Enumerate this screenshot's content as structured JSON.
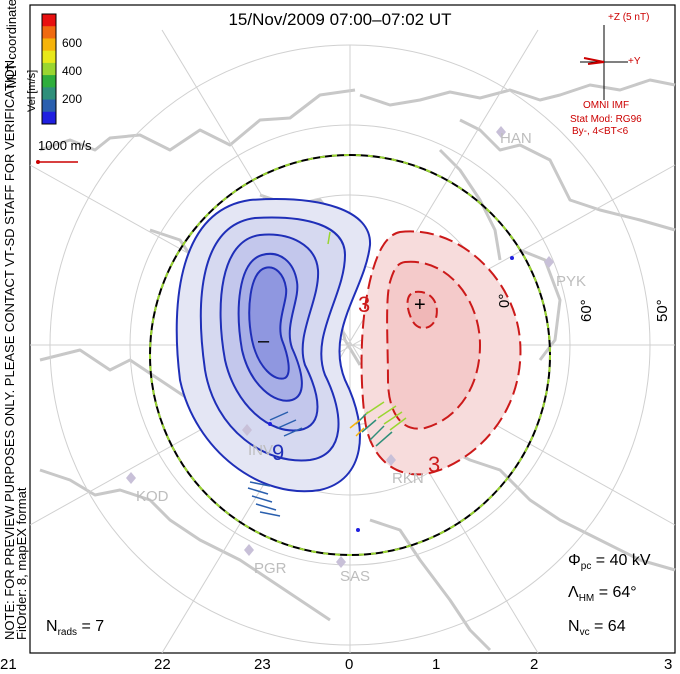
{
  "title": "15/Nov/2009 07:00–07:02 UT",
  "side_notes": {
    "line1": "NOTE: FOR PREVIEW PURPOSES ONLY. PLEASE CONTACT VT-SD STAFF FOR VERIFICATION.",
    "line2": "FitOrder: 8, mapEX format"
  },
  "coordinates_label": "MLT coordinates",
  "color_scale": {
    "label": "Vel [m/s]",
    "ticks": [
      "600",
      "400",
      "200"
    ],
    "colors": [
      "#e81010",
      "#f06a10",
      "#f5b30a",
      "#e8e81a",
      "#9ad630",
      "#2fae3c",
      "#2f8f7a",
      "#2a5fae",
      "#1f1fe0"
    ]
  },
  "vector_scale": {
    "label": "1000 m/s",
    "color": "#cc0000"
  },
  "imf": {
    "z_label": "+Z (5 nT)",
    "y_label": "+Y",
    "source": "OMNI IMF",
    "model": "Stat Mod: RG96",
    "condition": "By-, 4<BT<6",
    "color": "#cc0000"
  },
  "stations": [
    "HAN",
    "PYK",
    "INV",
    "KOD",
    "RKN",
    "PGR",
    "SAS"
  ],
  "contours": {
    "negative_label": "9",
    "positive_label_a": "3",
    "positive_label_b": "3",
    "min_marker": "–",
    "max_marker": "+",
    "negative_color": "#1f2fb8",
    "positive_color": "#cc1a1a"
  },
  "latitude_labels": [
    "60°",
    "50°",
    "0°"
  ],
  "stats": {
    "phi_pc_symbol": "Φ",
    "phi_pc_sub": "pc",
    "phi_pc_value": "= 40 kV",
    "lambda_symbol": "Λ",
    "lambda_sub": "HM",
    "lambda_value": "= 64°",
    "nvc_symbol": "N",
    "nvc_sub": "vc",
    "nvc_value": "= 64",
    "nrads_symbol": "N",
    "nrads_sub": "rads",
    "nrads_value": "= 7"
  },
  "mlt_axis": [
    "21",
    "22",
    "23",
    "0",
    "1",
    "2",
    "3"
  ]
}
